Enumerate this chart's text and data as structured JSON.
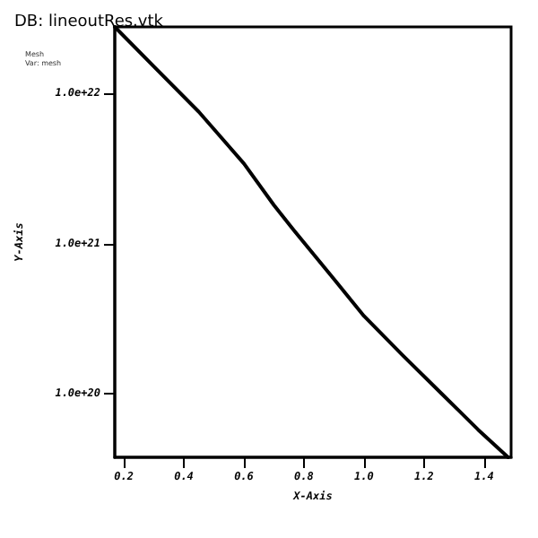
{
  "chart_data": {
    "type": "line",
    "title": "DB: lineoutRes.vtk",
    "xlabel": "X-Axis",
    "ylabel": "Y-Axis",
    "annotations": [
      "Mesh",
      "Var: mesh"
    ],
    "series": [
      {
        "color": "#000000",
        "x": [
          0.17,
          0.3,
          0.45,
          0.6,
          0.7,
          0.77,
          0.9,
          1.0,
          1.13,
          1.26,
          1.38,
          1.48
        ],
        "values": [
          2.75e+22,
          1.5e+22,
          7.5e+21,
          3.4e+21,
          1.8e+21,
          1.2e+21,
          5.8e+20,
          3.3e+20,
          1.8e+20,
          1e+20,
          5.8e+19,
          3.8e+19
        ]
      }
    ],
    "xlim": [
      0.17,
      1.49
    ],
    "xticks": [
      0.2,
      0.4,
      0.6,
      0.8,
      {
        "value": 1,
        "label": "1.0"
      },
      1.2,
      1.4
    ],
    "ylim": [
      3.8e+19,
      2.75e+22
    ],
    "yticks": [
      {
        "value": 1e+20,
        "label": "1.0e+20"
      },
      {
        "value": 1e+21,
        "label": "1.0e+21"
      },
      {
        "value": 1e+22,
        "label": "1.0e+22"
      }
    ],
    "log": "y",
    "grid": false,
    "marker": "none",
    "line_style": "solid"
  }
}
